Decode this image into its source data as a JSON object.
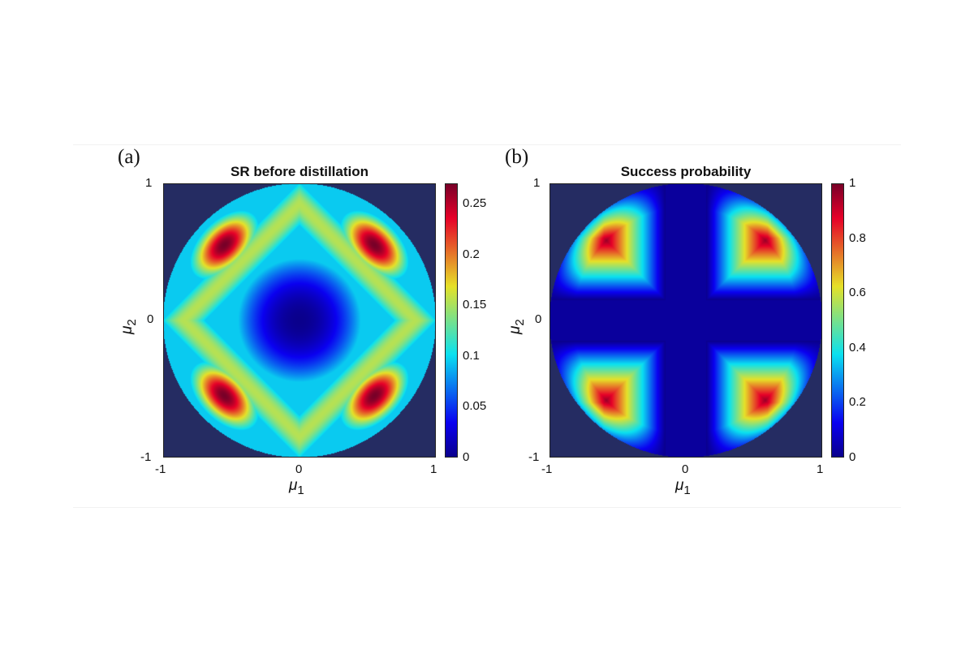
{
  "chart_data": [
    {
      "type": "heatmap",
      "panel_label": "(a)",
      "title": "SR  before distillation",
      "xlabel_symbol": "μ",
      "xlabel_sub": "1",
      "ylabel_symbol": "μ",
      "ylabel_sub": "2",
      "xlim": [
        -1,
        1
      ],
      "ylim": [
        -1,
        1
      ],
      "x_ticks": [
        "-1",
        "0",
        "1"
      ],
      "y_ticks": [
        "1",
        "0",
        "-1"
      ],
      "domain": "unit disk (μ1² + μ2² ≤ 1); outside filled with minimum color",
      "colorbar": {
        "min": 0,
        "max": 0.27,
        "ticks": [
          "0.25",
          "0.2",
          "0.15",
          "0.1",
          "0.05",
          "0"
        ]
      },
      "colormap": "jet",
      "features": {
        "center_value": 0,
        "peak_value": 0.27,
        "peak_locations": [
          [
            -0.55,
            0.55
          ],
          [
            0.55,
            0.55
          ],
          [
            -0.55,
            -0.55
          ],
          [
            0.55,
            -0.55
          ]
        ],
        "ridge_along": "|μ1| + |μ2| ≈ 0.8 (diamond) with saddles ≈ 0.17 near (0, ±0.95) and (±0.95, 0)"
      }
    },
    {
      "type": "heatmap",
      "panel_label": "(b)",
      "title": "Success probability",
      "xlabel_symbol": "μ",
      "xlabel_sub": "1",
      "ylabel_symbol": "μ",
      "ylabel_sub": "2",
      "xlim": [
        -1,
        1
      ],
      "ylim": [
        -1,
        1
      ],
      "x_ticks": [
        "-1",
        "0",
        "1"
      ],
      "y_ticks": [
        "1",
        "0",
        "-1"
      ],
      "domain": "unit disk (μ1² + μ2² ≤ 1); outside filled with minimum color",
      "colorbar": {
        "min": 0,
        "max": 1,
        "ticks": [
          "1",
          "0.8",
          "0.6",
          "0.4",
          "0.2",
          "0"
        ]
      },
      "colormap": "jet",
      "features": {
        "zero_band_half_width": 0.15,
        "peak_value": 1,
        "peak_locations": [
          [
            -0.6,
            0.6
          ],
          [
            0.6,
            0.6
          ],
          [
            -0.6,
            -0.6
          ],
          [
            0.6,
            -0.6
          ]
        ],
        "shape": "value grows with min(|μ1|, |μ2|), producing right-angle bands in each quadrant"
      }
    }
  ]
}
